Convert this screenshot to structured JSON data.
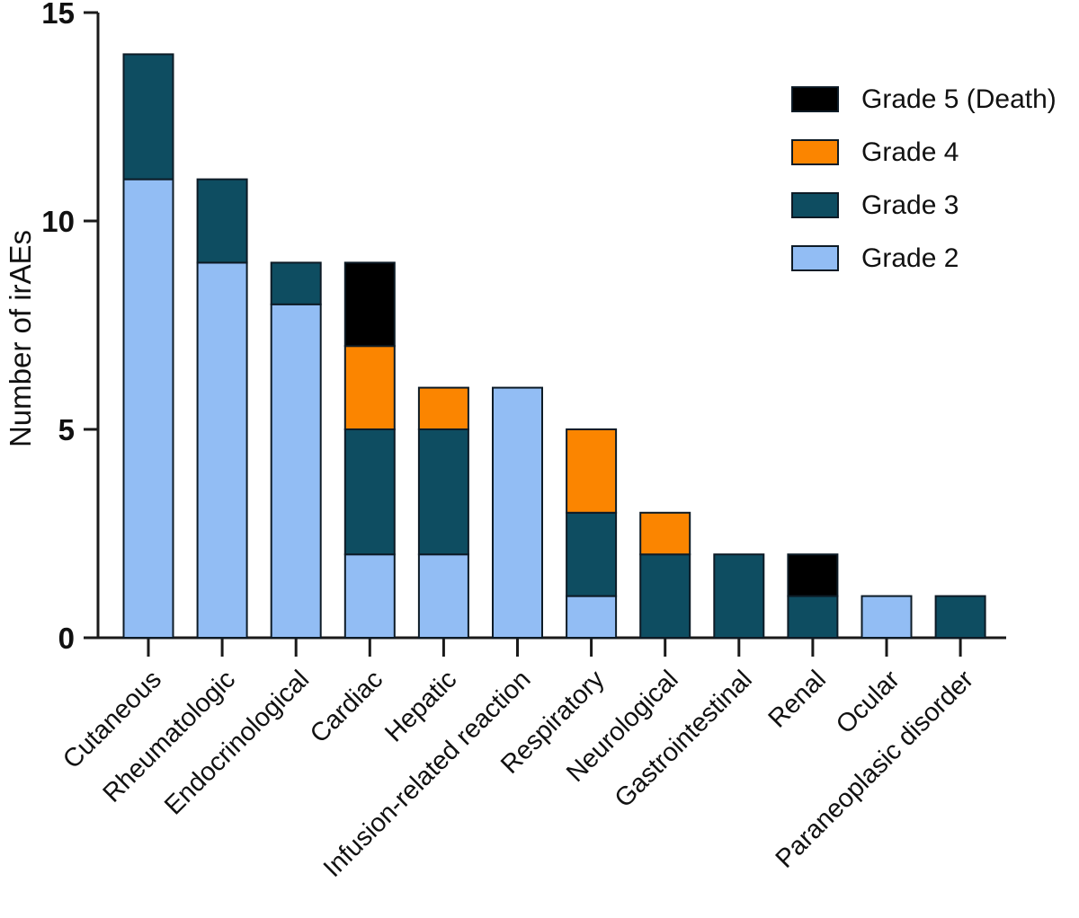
{
  "figure": {
    "background": "#ffffff",
    "description": "Stacked bar chart of number of irAEs by organ system and severity grade"
  },
  "chart_data": {
    "type": "bar",
    "stacked": true,
    "title": "",
    "xlabel": "",
    "ylabel": "Number of irAEs",
    "ylim": [
      0,
      15
    ],
    "yticks": [
      0,
      5,
      10,
      15
    ],
    "grid": false,
    "legend_position": "top-right",
    "categories": [
      "Cutaneous",
      "Rheumatologic",
      "Endocrinological",
      "Cardiac",
      "Hepatic",
      "Infusion-related reaction",
      "Respiratory",
      "Neurological",
      "Gastrointestinal",
      "Renal",
      "Ocular",
      "Paraneoplasic disorder"
    ],
    "series": [
      {
        "name": "Grade 2",
        "color": "#92bdf4",
        "values": [
          11,
          9,
          8,
          2,
          2,
          6,
          1,
          0,
          0,
          0,
          1,
          0
        ]
      },
      {
        "name": "Grade 3",
        "color": "#0e4d61",
        "values": [
          3,
          2,
          1,
          3,
          3,
          0,
          2,
          2,
          2,
          1,
          0,
          1
        ]
      },
      {
        "name": "Grade 4",
        "color": "#fb8500",
        "values": [
          0,
          0,
          0,
          2,
          1,
          0,
          2,
          1,
          0,
          0,
          0,
          0
        ]
      },
      {
        "name": "Grade 5 (Death)",
        "color": "#000000",
        "values": [
          0,
          0,
          0,
          2,
          0,
          0,
          0,
          0,
          0,
          1,
          0,
          0
        ]
      }
    ],
    "totals": [
      14,
      11,
      9,
      9,
      6,
      6,
      5,
      3,
      2,
      2,
      1,
      1
    ],
    "legend_order": [
      3,
      2,
      1,
      0
    ],
    "colors": {
      "axis": "#1a1a1a",
      "bar_border": "#0d1b26"
    }
  }
}
